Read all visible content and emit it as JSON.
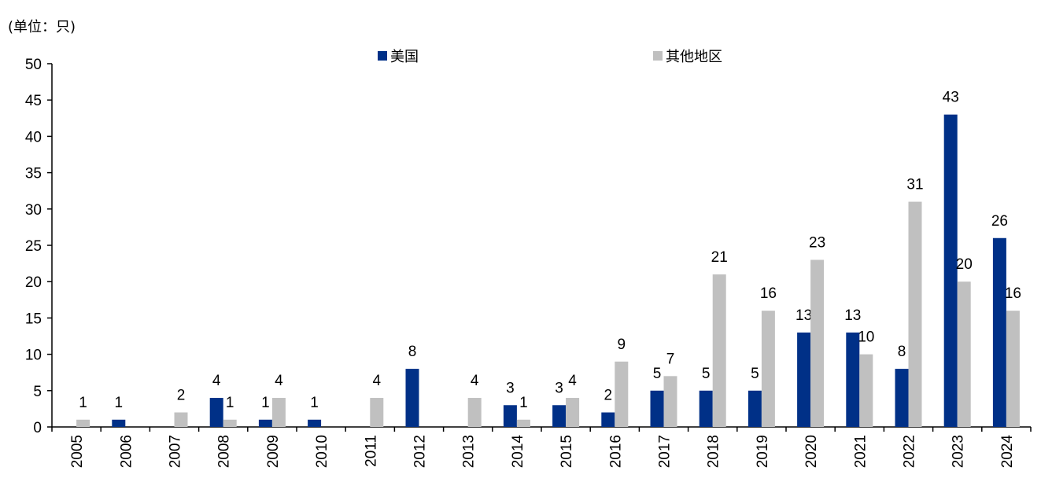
{
  "unit_label": "(单位：只)",
  "chart_data": {
    "type": "bar",
    "categories": [
      "2005",
      "2006",
      "2007",
      "2008",
      "2009",
      "2010",
      "2011",
      "2012",
      "2013",
      "2014",
      "2015",
      "2016",
      "2017",
      "2018",
      "2019",
      "2020",
      "2021",
      "2022",
      "2023",
      "2024"
    ],
    "series": [
      {
        "name": "美国",
        "color": "#003087",
        "values": [
          0,
          1,
          0,
          4,
          1,
          1,
          0,
          8,
          0,
          3,
          3,
          2,
          5,
          5,
          5,
          13,
          13,
          8,
          43,
          26
        ],
        "labels": [
          null,
          1,
          null,
          4,
          1,
          1,
          null,
          8,
          null,
          3,
          3,
          2,
          5,
          5,
          5,
          13,
          13,
          8,
          43,
          26
        ]
      },
      {
        "name": "其他地区",
        "color": "#c0c0c0",
        "values": [
          1,
          0,
          2,
          1,
          4,
          0,
          4,
          0,
          4,
          1,
          4,
          9,
          7,
          21,
          16,
          23,
          10,
          31,
          20,
          16
        ],
        "labels": [
          1,
          null,
          2,
          1,
          4,
          null,
          4,
          null,
          4,
          1,
          4,
          9,
          7,
          21,
          16,
          23,
          10,
          31,
          20,
          16
        ]
      }
    ],
    "ylim": [
      0,
      50
    ],
    "yticks": [
      0,
      5,
      10,
      15,
      20,
      25,
      30,
      35,
      40,
      45,
      50
    ],
    "legend_position": "top"
  }
}
